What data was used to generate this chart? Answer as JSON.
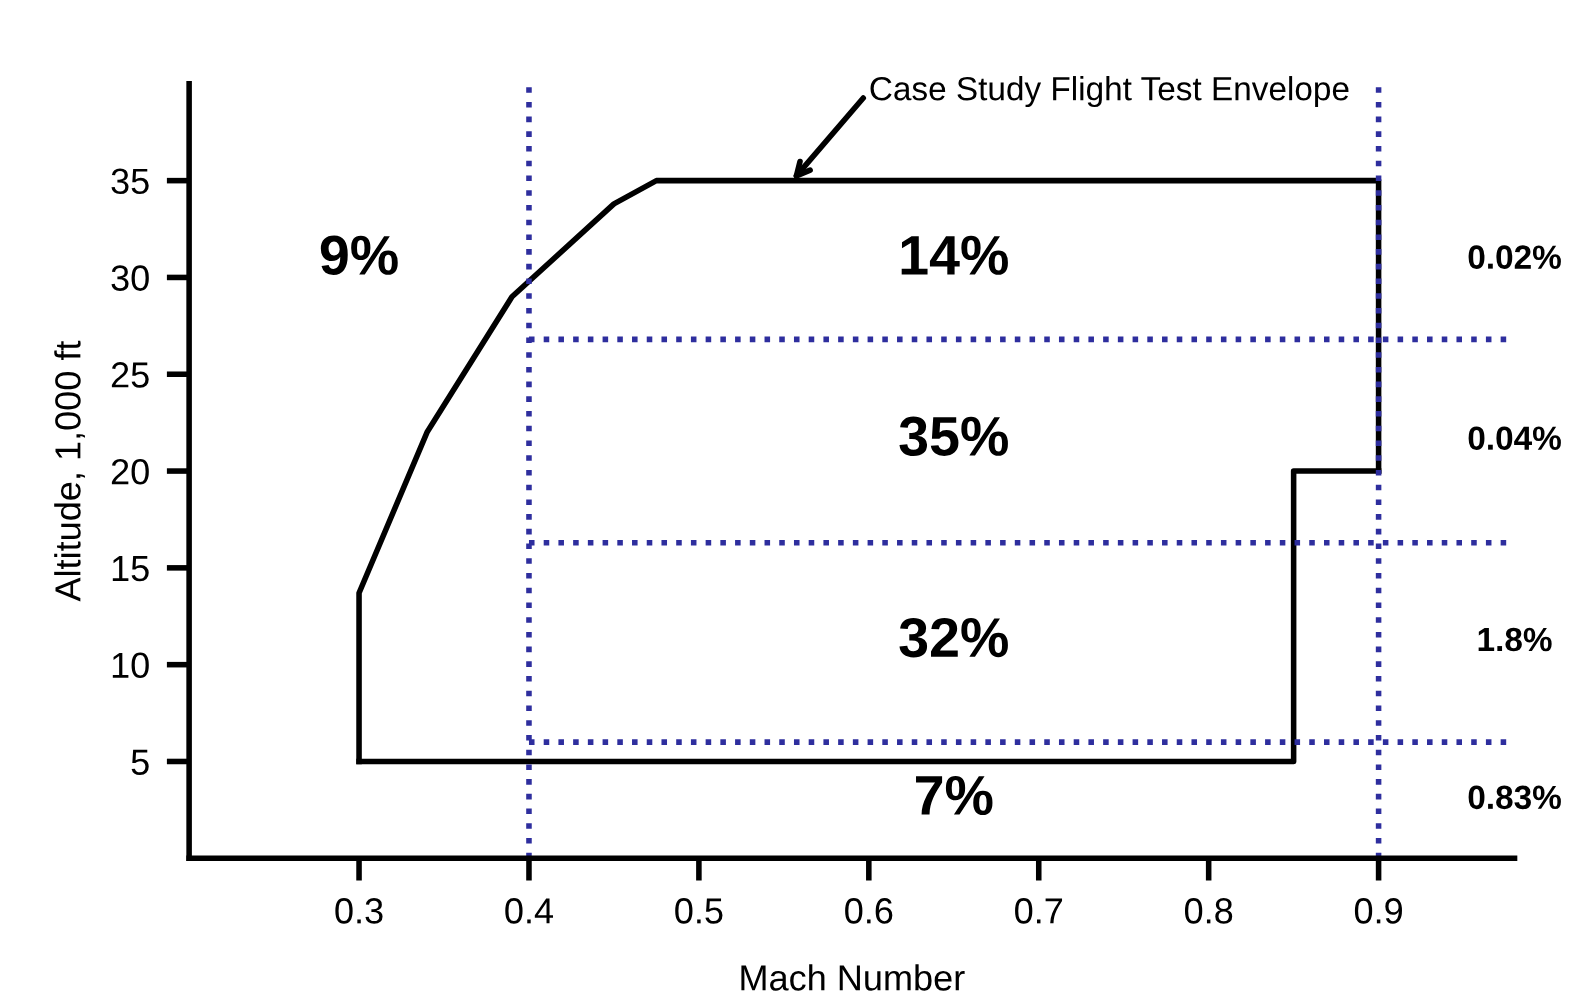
{
  "chart_data": {
    "type": "line",
    "xlabel": "Mach Number",
    "ylabel": "Altitude, 1,000 ft",
    "xlim": [
      0.2,
      0.98
    ],
    "ylim": [
      0,
      40
    ],
    "xticks": [
      0.3,
      0.4,
      0.5,
      0.6,
      0.7,
      0.8,
      0.9
    ],
    "yticks": [
      5,
      10,
      15,
      20,
      25,
      30,
      35
    ],
    "grid": false,
    "marker": "none",
    "line_style": "solid",
    "series": [
      {
        "color": "#000000",
        "x": [
          0.3,
          0.3,
          0.34,
          0.39,
          0.45,
          0.475,
          0.9,
          0.9
        ],
        "values": [
          5,
          13.7,
          22,
          29,
          33.8,
          35,
          35,
          20
        ]
      },
      {
        "color": "#000000",
        "x": [
          0.3,
          0.85,
          0.85,
          0.9
        ],
        "values": [
          5,
          5,
          20,
          20
        ]
      }
    ],
    "ref_lines": [
      {
        "axis": "x",
        "value": 0.4,
        "color": "#2e2e9e",
        "line_style": "dotted"
      },
      {
        "axis": "x",
        "value": 0.9,
        "color": "#2e2e9e",
        "line_style": "dotted"
      },
      {
        "axis": "y",
        "value": 26.8,
        "color": "#2e2e9e",
        "line_style": "dotted"
      },
      {
        "axis": "y",
        "value": 16.3,
        "color": "#2e2e9e",
        "line_style": "dotted"
      },
      {
        "axis": "y",
        "value": 6.0,
        "color": "#2e2e9e",
        "line_style": "dotted"
      }
    ],
    "annotations": [
      {
        "text": "Case Study Flight Test Envelope",
        "x": 0.555,
        "y": 35
      },
      "9%",
      "14%",
      "35%",
      "32%",
      "7%",
      "0.02%",
      "0.04%",
      "1.8%",
      "0.83%"
    ]
  }
}
